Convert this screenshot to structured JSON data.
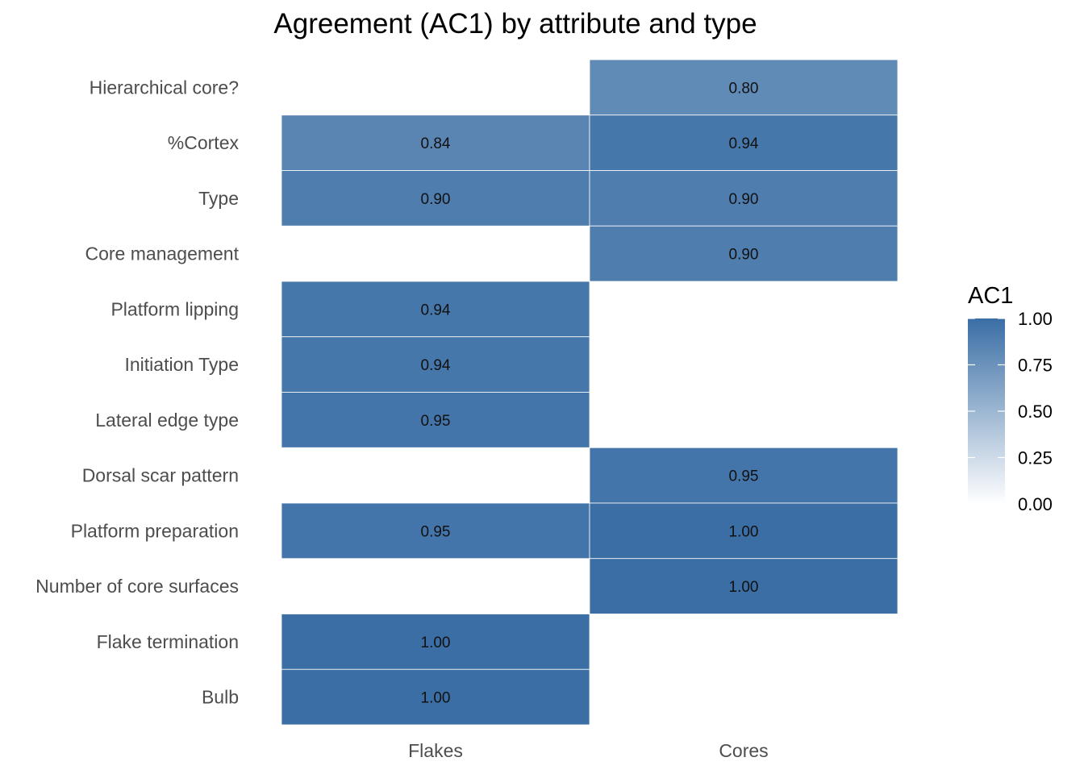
{
  "chart_data": {
    "type": "heatmap",
    "title": "Agreement (AC1) by attribute and type",
    "xlabel": "",
    "ylabel": "",
    "x_categories": [
      "Flakes",
      "Cores"
    ],
    "y_categories": [
      "Hierarchical core?",
      "%Cortex",
      "Type",
      "Core management",
      "Platform lipping",
      "Initiation Type",
      "Lateral edge type",
      "Dorsal scar pattern",
      "Platform preparation",
      "Number of core surfaces",
      "Flake termination",
      "Bulb"
    ],
    "cells": [
      {
        "x": "Cores",
        "y": "Hierarchical core?",
        "value": 0.8,
        "label": "0.80"
      },
      {
        "x": "Flakes",
        "y": "%Cortex",
        "value": 0.84,
        "label": "0.84"
      },
      {
        "x": "Cores",
        "y": "%Cortex",
        "value": 0.94,
        "label": "0.94"
      },
      {
        "x": "Flakes",
        "y": "Type",
        "value": 0.9,
        "label": "0.90"
      },
      {
        "x": "Cores",
        "y": "Type",
        "value": 0.9,
        "label": "0.90"
      },
      {
        "x": "Cores",
        "y": "Core management",
        "value": 0.9,
        "label": "0.90"
      },
      {
        "x": "Flakes",
        "y": "Platform lipping",
        "value": 0.94,
        "label": "0.94"
      },
      {
        "x": "Flakes",
        "y": "Initiation Type",
        "value": 0.94,
        "label": "0.94"
      },
      {
        "x": "Flakes",
        "y": "Lateral edge type",
        "value": 0.95,
        "label": "0.95"
      },
      {
        "x": "Cores",
        "y": "Dorsal scar pattern",
        "value": 0.95,
        "label": "0.95"
      },
      {
        "x": "Flakes",
        "y": "Platform preparation",
        "value": 0.95,
        "label": "0.95"
      },
      {
        "x": "Cores",
        "y": "Platform preparation",
        "value": 1.0,
        "label": "1.00"
      },
      {
        "x": "Cores",
        "y": "Number of core surfaces",
        "value": 1.0,
        "label": "1.00"
      },
      {
        "x": "Flakes",
        "y": "Flake termination",
        "value": 1.0,
        "label": "1.00"
      },
      {
        "x": "Flakes",
        "y": "Bulb",
        "value": 1.0,
        "label": "1.00"
      }
    ],
    "legend": {
      "title": "AC1",
      "placement": "right",
      "range": [
        0,
        1
      ],
      "ticks": [
        "0.00",
        "0.25",
        "0.50",
        "0.75",
        "1.00"
      ],
      "low_color": "#ffffff",
      "high_color": "#3a6ea5"
    },
    "grid": false
  }
}
